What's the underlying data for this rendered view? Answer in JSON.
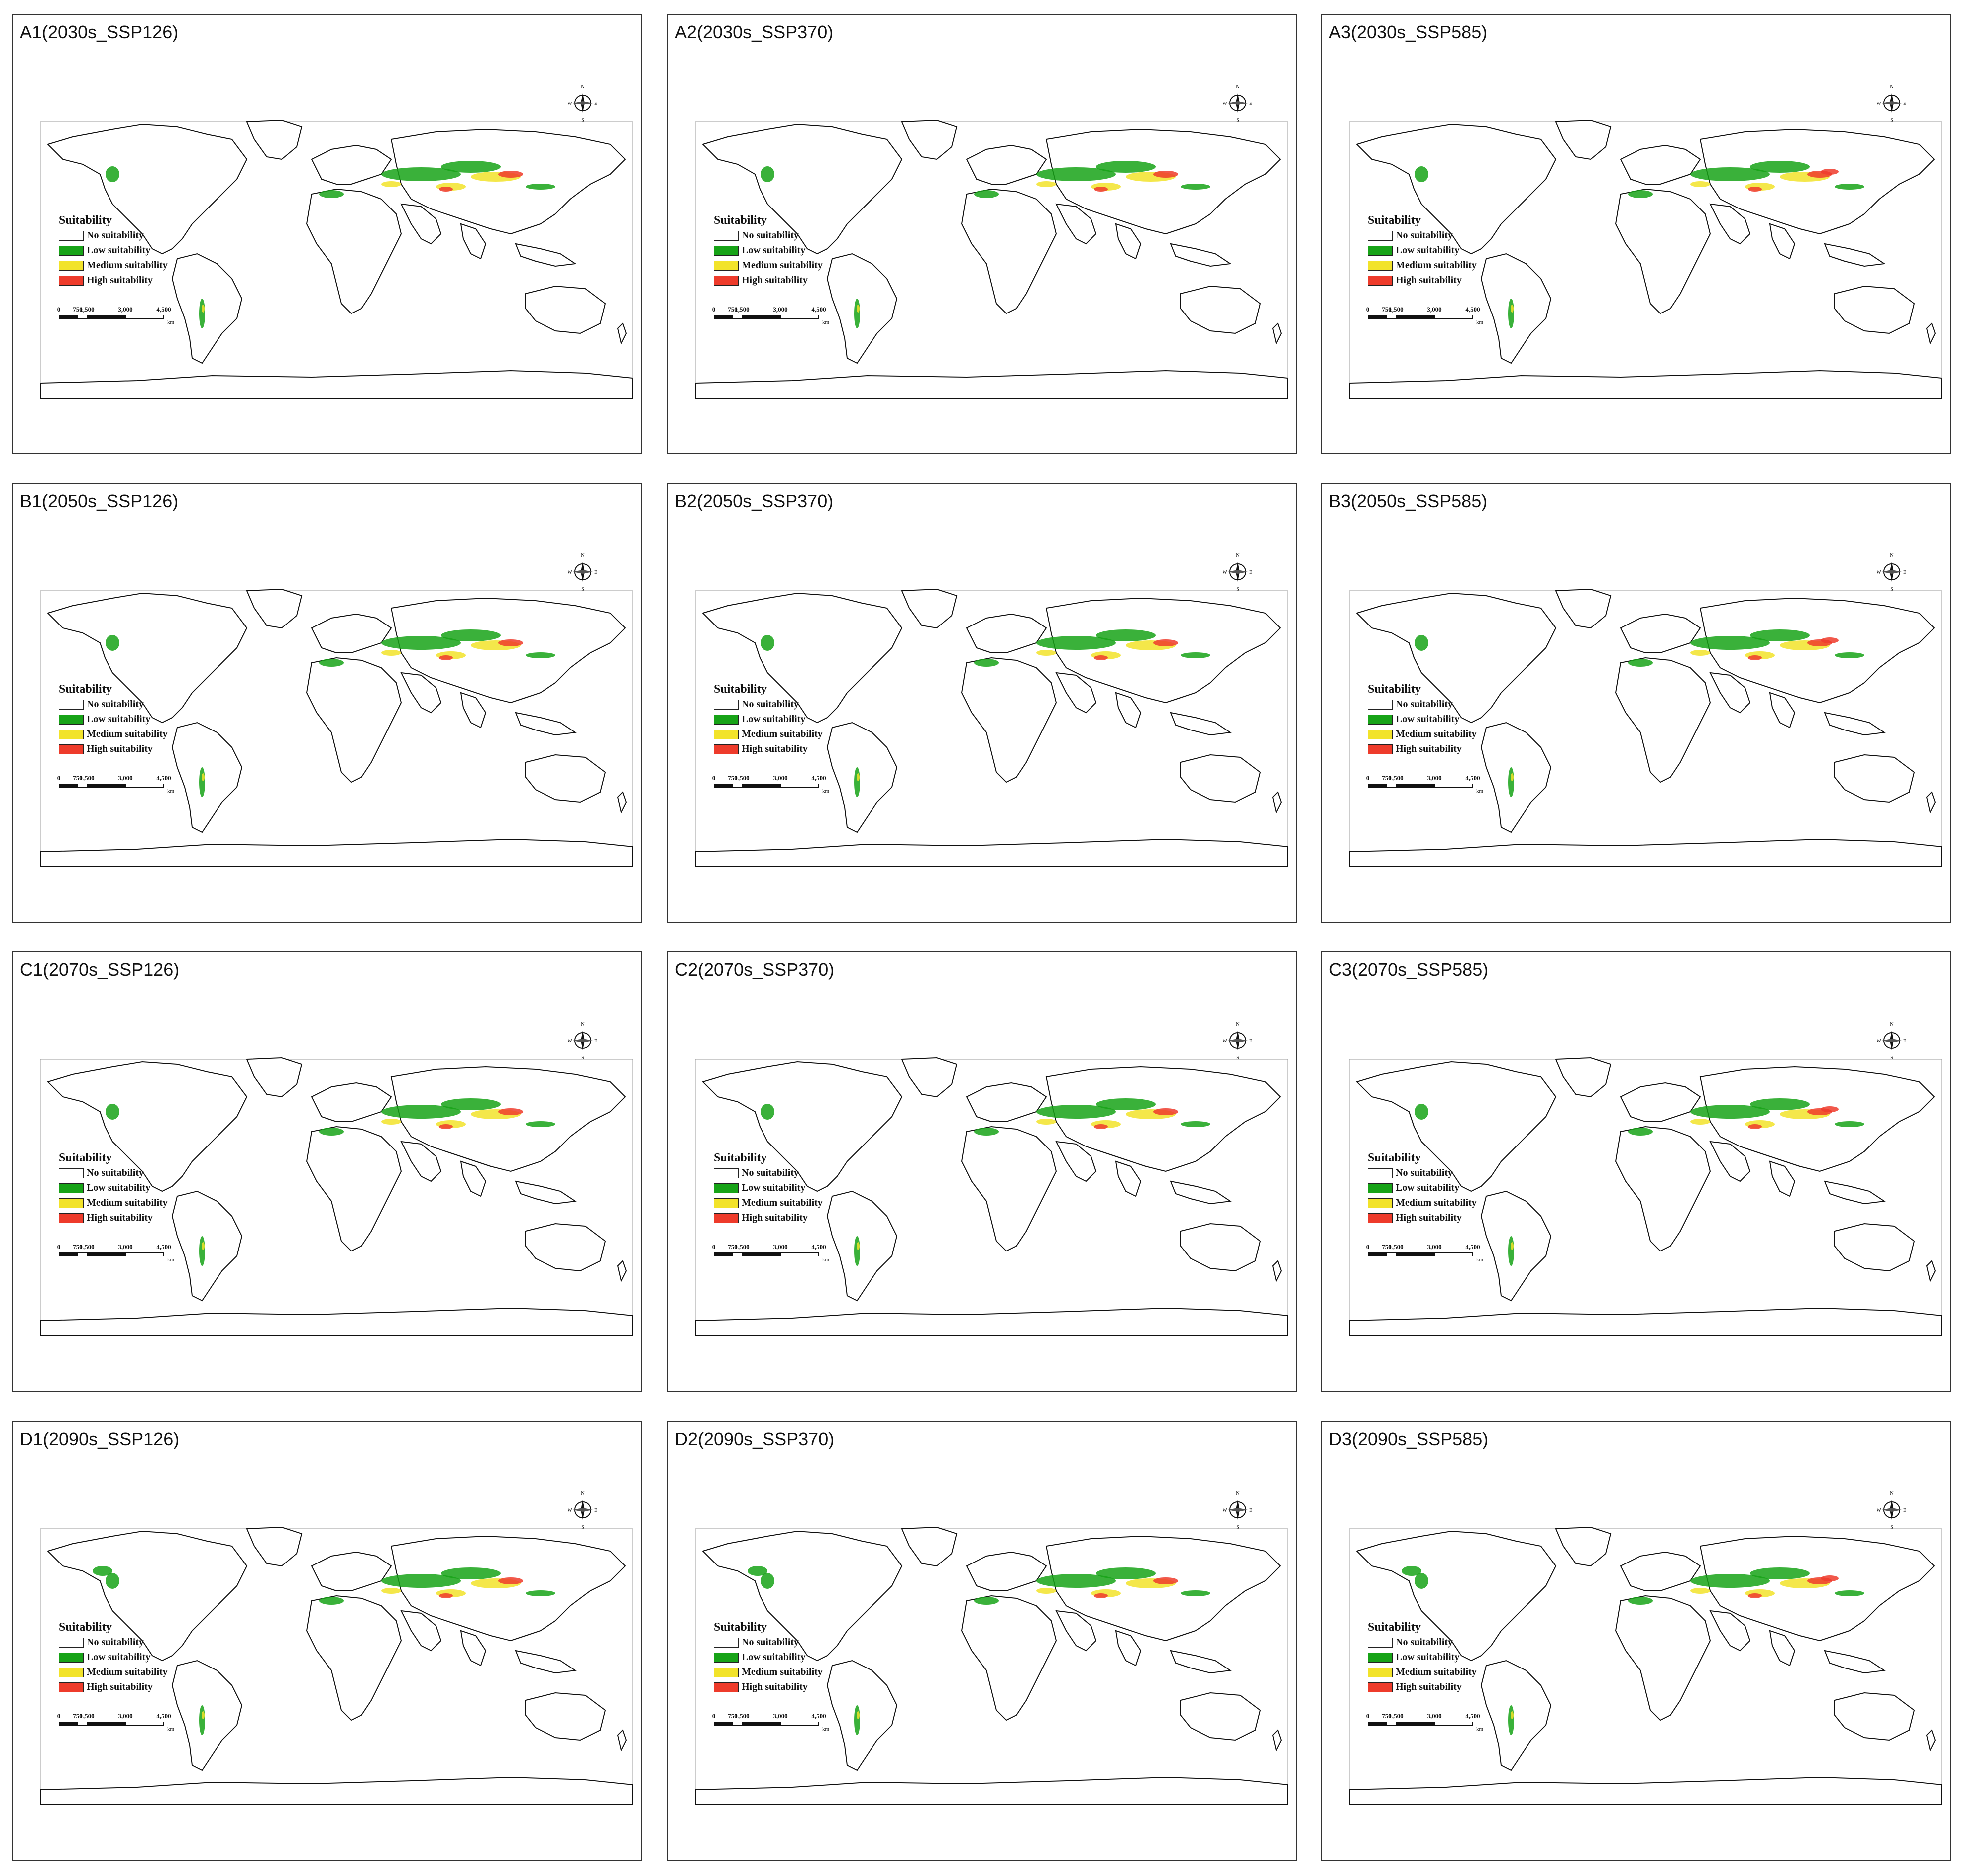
{
  "colors": {
    "no_suitability": "#ffffff",
    "low_suitability": "#17a317",
    "medium_suitability": "#f2e32a",
    "high_suitability": "#ee3b2b",
    "coastline": "#111111"
  },
  "legend": {
    "title": "Suitability",
    "items": [
      {
        "label": "No suitability",
        "color_key": "no_suitability"
      },
      {
        "label": "Low suitability",
        "color_key": "low_suitability"
      },
      {
        "label": "Medium suitability",
        "color_key": "medium_suitability"
      },
      {
        "label": "High suitability",
        "color_key": "high_suitability"
      }
    ]
  },
  "scalebar": {
    "ticks": [
      "0",
      "750",
      "1,500",
      "3,000",
      "4,500"
    ],
    "unit": "km"
  },
  "compass": {
    "n": "N",
    "s": "S",
    "e": "E",
    "w": "W",
    "icon": "compass-rose-icon"
  },
  "panels": [
    {
      "label": "A1(2030s_SSP126)"
    },
    {
      "label": "A2(2030s_SSP370)"
    },
    {
      "label": "A3(2030s_SSP585)"
    },
    {
      "label": "B1(2050s_SSP126)"
    },
    {
      "label": "B2(2050s_SSP370)"
    },
    {
      "label": "B3(2050s_SSP585)"
    },
    {
      "label": "C1(2070s_SSP126)"
    },
    {
      "label": "C2(2070s_SSP370)"
    },
    {
      "label": "C3(2070s_SSP585)"
    },
    {
      "label": "D1(2090s_SSP126)"
    },
    {
      "label": "D2(2090s_SSP370)"
    },
    {
      "label": "D3(2090s_SSP585)"
    }
  ]
}
